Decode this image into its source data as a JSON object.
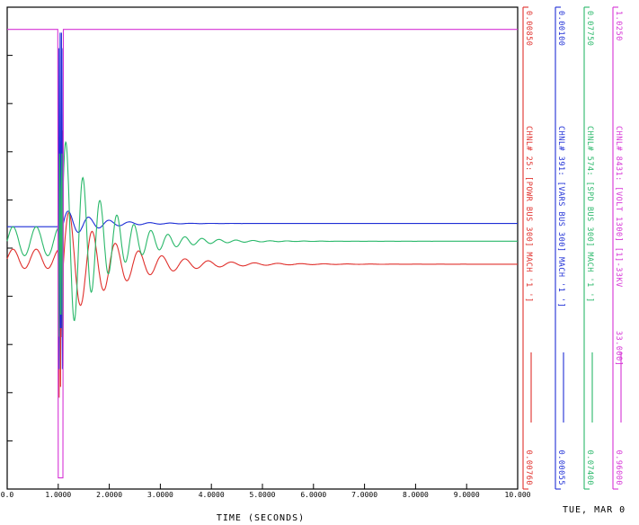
{
  "chart_data": {
    "type": "line",
    "xlabel": "TIME (SECONDS)",
    "xlim": [
      0,
      10
    ],
    "x_ticks": [
      "0.0",
      "1.0000",
      "2.0000",
      "3.0000",
      "4.0000",
      "5.0000",
      "6.0000",
      "7.0000",
      "8.0000",
      "9.0000",
      "10.000"
    ],
    "footer": "TUE, MAR 0",
    "series": [
      {
        "name": "CHNL# 25: [POWR BUS 300] MACH '1 ']",
        "color": "#e0302c",
        "ylim": [
          0.0076,
          0.0085
        ],
        "scale_top": "0.00850",
        "scale_bottom": "0.00760",
        "pre_value": 0.00803,
        "final_value": 0.00802
      },
      {
        "name": "CHNL# 391: [VARS BUS 300] MACH '1 ']",
        "color": "#1e2fd6",
        "ylim": [
          0.00055,
          0.001
        ],
        "scale_top": "0.00100",
        "scale_bottom": "0.00055",
        "pre_value": 0.000795,
        "final_value": 0.000798
      },
      {
        "name": "CHNL# 574: [SPD BUS 300] MACH '1 ']",
        "color": "#2ab86a",
        "ylim": [
          0.074,
          0.0775
        ],
        "scale_top": "0.07750",
        "scale_bottom": "0.07400",
        "pre_value": 0.0758,
        "final_value": 0.0758
      },
      {
        "name": "CHNL# 8431: [VOLT 1300] [1]-33KV",
        "extra_label": "33.000]",
        "color": "#d633d6",
        "ylim": [
          0.96,
          1.025
        ],
        "scale_top": "1.0250",
        "scale_bottom": "0.96000",
        "pre_value": 1.022,
        "final_value": 1.022,
        "fault_value": 0.9615
      }
    ]
  }
}
